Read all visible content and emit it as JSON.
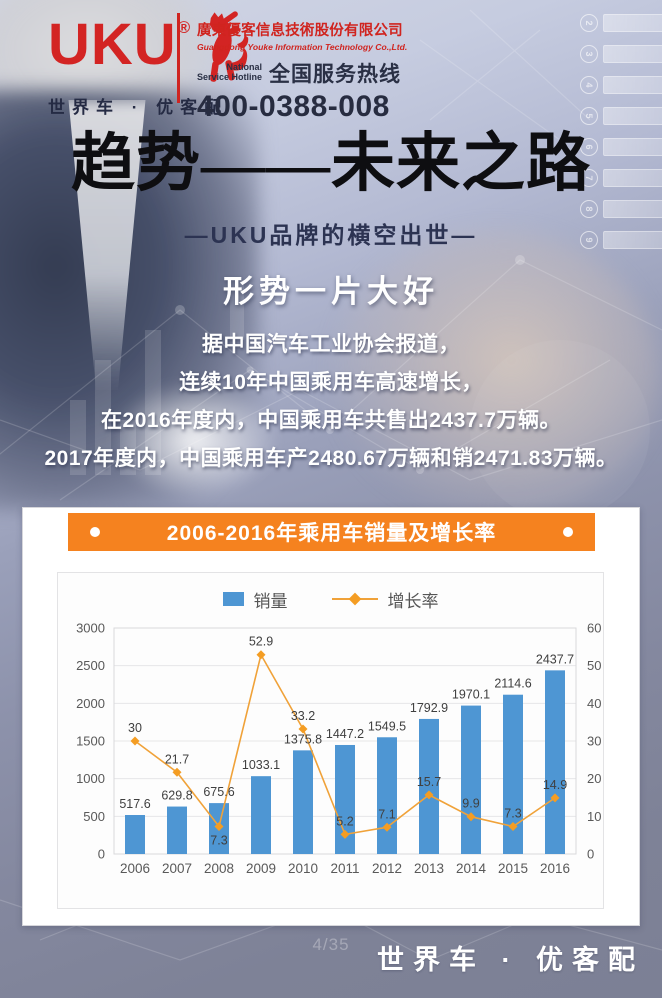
{
  "colors": {
    "brand_red": "#d32423",
    "dark_navy": "#2a3045",
    "accent_orange": "#f5821f",
    "bar_blue": "#4e96d3",
    "line_orange": "#f0a239",
    "footer_gray": "#7c8095"
  },
  "header": {
    "logo_text": "UKU",
    "registered_mark": "®",
    "logo_tagline": "世界车 · 优客配",
    "company_name_cn": "廣東優客信息技術股份有限公司",
    "company_name_en": "Guangdong Youke Information Technology Co.,Ltd.",
    "hotline_en_line1": "National",
    "hotline_en_line2": "Service Hotline",
    "hotline_cn": "全国服务热线",
    "hotline_number": "400-0388-008"
  },
  "hero": {
    "title": "趋势——未来之路",
    "subtitle": "—UKU品牌的横空出世—",
    "headline": "形势一片大好",
    "body": [
      "据中国汽车工业协会报道，",
      "连续10年中国乘用车高速增长，",
      "在2016年度内，中国乘用车共售出2437.7万辆。",
      "2017年度内，中国乘用车产2480.67万辆和销2471.83万辆。"
    ]
  },
  "chart_card": {
    "title": "2006-2016年乘用车销量及增长率"
  },
  "chart_data": {
    "type": "bar+line",
    "title": "2006-2016年乘用车销量及增长率",
    "categories": [
      "2006",
      "2007",
      "2008",
      "2009",
      "2010",
      "2011",
      "2012",
      "2013",
      "2014",
      "2015",
      "2016"
    ],
    "series": [
      {
        "name": "销量",
        "type": "bar",
        "axis": "left",
        "color": "#4e96d3",
        "values": [
          517.6,
          629.8,
          675.6,
          1033.1,
          1375.8,
          1447.2,
          1549.5,
          1792.9,
          1970.1,
          2114.6,
          2437.7
        ]
      },
      {
        "name": "增长率",
        "type": "line",
        "axis": "right",
        "color": "#f0a239",
        "marker": "diamond",
        "values": [
          30,
          21.7,
          7.3,
          52.9,
          33.2,
          5.2,
          7.1,
          15.7,
          9.9,
          7.3,
          14.9
        ]
      }
    ],
    "axis_left": {
      "min": 0,
      "max": 3000,
      "step": 500
    },
    "axis_right": {
      "min": 0,
      "max": 60,
      "step": 10
    },
    "grid": true,
    "legend_position": "top",
    "data_labels": true,
    "line_label_below_indices": [
      2
    ]
  },
  "footer": {
    "page_number": "4/35",
    "brand": "世界车 · 优客配"
  },
  "background": {
    "checklist_numbers": [
      "2",
      "3",
      "4",
      "5",
      "6",
      "7",
      "8",
      "9"
    ]
  }
}
